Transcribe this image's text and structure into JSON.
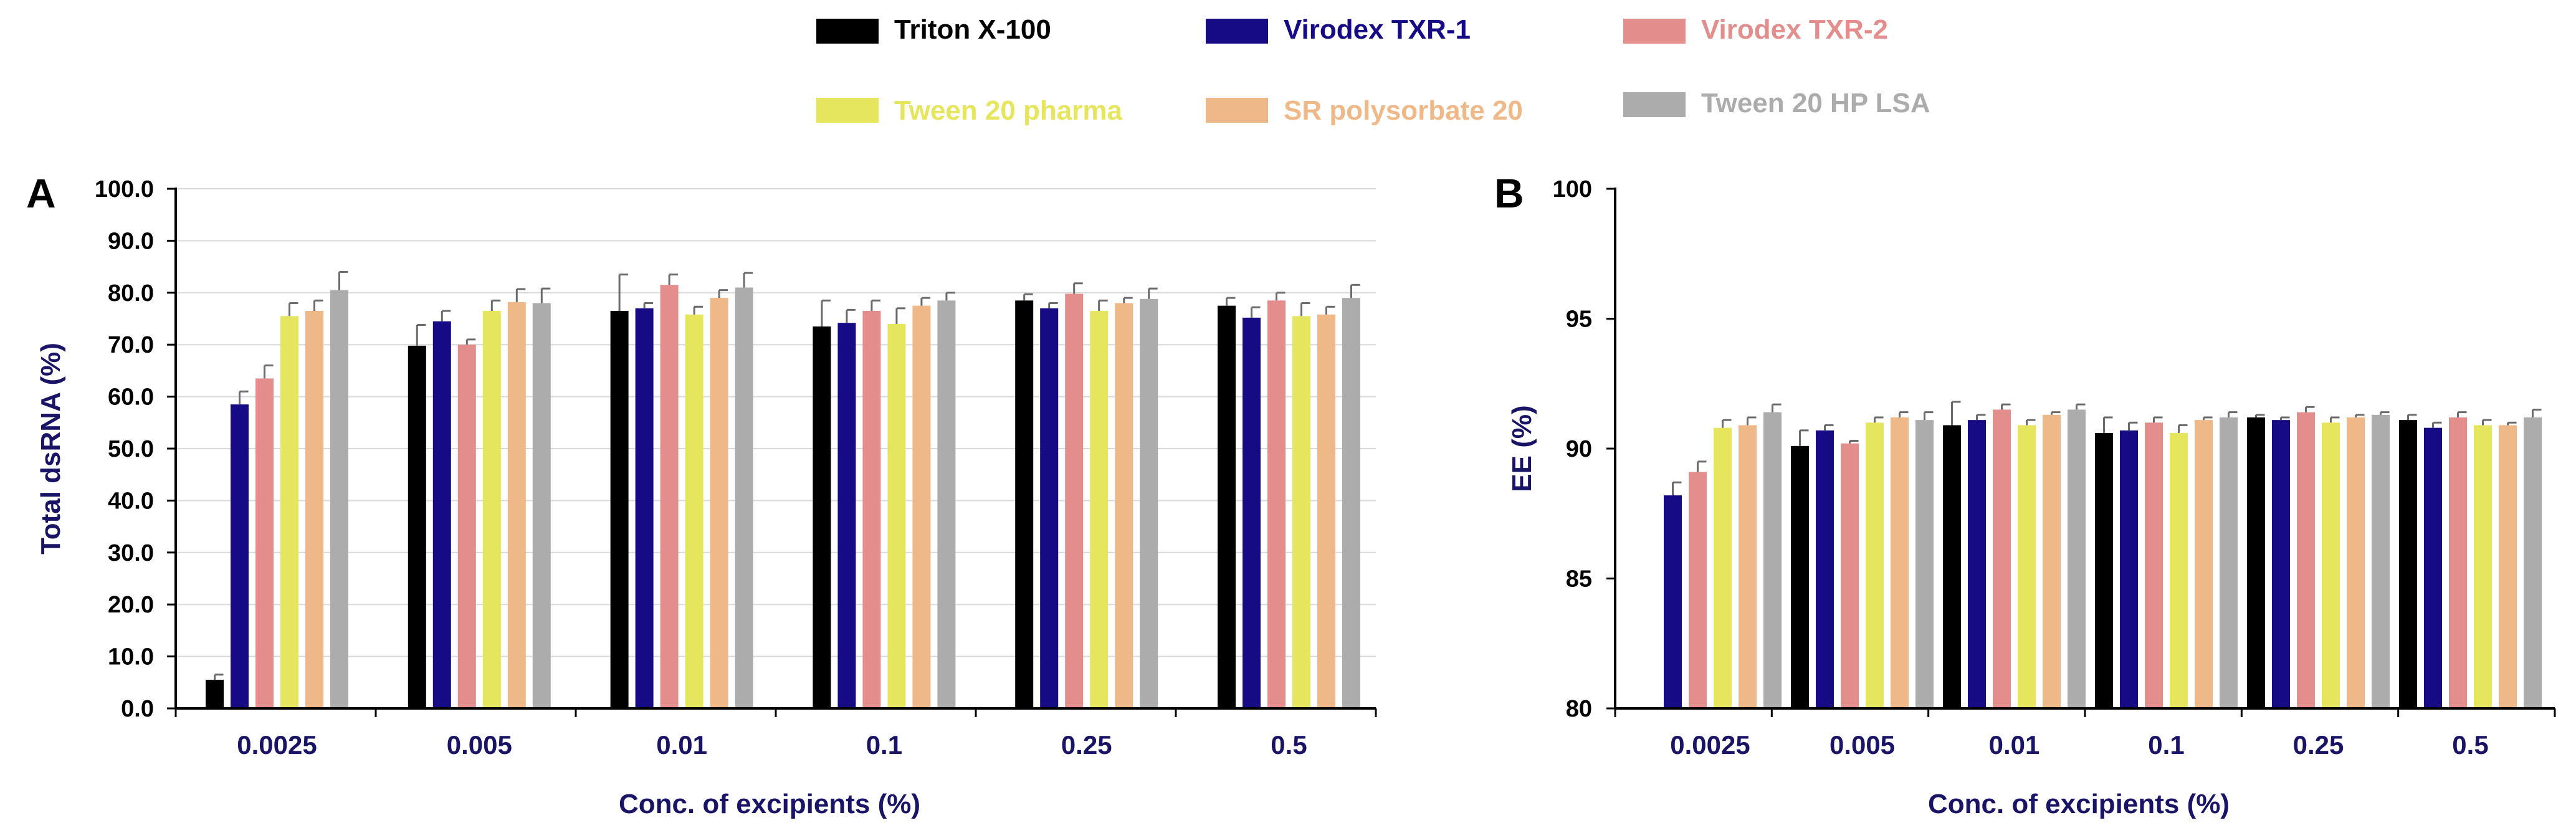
{
  "legend": [
    {
      "name": "Triton X-100",
      "color": "#000000",
      "text_color": "#000000"
    },
    {
      "name": "Virodex TXR-1",
      "color": "#160a85",
      "text_color": "#160a85"
    },
    {
      "name": "Virodex TXR-2",
      "color": "#e38d8d",
      "text_color": "#e38d8d"
    },
    {
      "name": "Tween 20 pharma",
      "color": "#e6e65e",
      "text_color": "#e6e65e"
    },
    {
      "name": "SR polysorbate 20",
      "color": "#efb888",
      "text_color": "#efb888"
    },
    {
      "name": "Tween 20 HP LSA",
      "color": "#acacac",
      "text_color": "#acacac"
    }
  ],
  "chart_data": [
    {
      "type": "bar",
      "panel": "A",
      "ylabel": "Total dsRNA (%)",
      "xlabel": "Conc. of excipients (%)",
      "ylim": [
        0,
        100
      ],
      "yticks": [
        "0.0",
        "10.0",
        "20.0",
        "30.0",
        "40.0",
        "50.0",
        "60.0",
        "70.0",
        "80.0",
        "90.0",
        "100.0"
      ],
      "grid": true,
      "categories": [
        "0.0025",
        "0.005",
        "0.01",
        "0.1",
        "0.25",
        "0.5"
      ],
      "series": [
        {
          "name": "Triton X-100",
          "values": [
            5.5,
            69.8,
            76.5,
            73.5,
            78.5,
            77.5
          ],
          "errors": [
            1.0,
            4.0,
            7.0,
            5.0,
            1.2,
            1.5
          ]
        },
        {
          "name": "Virodex TXR-1",
          "values": [
            58.5,
            74.5,
            77.0,
            74.2,
            77.0,
            75.2
          ],
          "errors": [
            2.5,
            2.0,
            1.0,
            2.5,
            1.0,
            2.0
          ]
        },
        {
          "name": "Virodex TXR-2",
          "values": [
            63.5,
            70.0,
            81.5,
            76.5,
            79.8,
            78.5
          ],
          "errors": [
            2.5,
            1.0,
            2.0,
            2.0,
            2.0,
            1.5
          ]
        },
        {
          "name": "Tween 20 pharma",
          "values": [
            75.5,
            76.5,
            75.8,
            74.0,
            76.5,
            75.5
          ],
          "errors": [
            2.5,
            2.0,
            1.5,
            3.0,
            2.0,
            2.5
          ]
        },
        {
          "name": "SR polysorbate 20",
          "values": [
            76.5,
            78.2,
            79.0,
            77.5,
            78.0,
            75.8
          ],
          "errors": [
            2.0,
            2.5,
            1.5,
            1.5,
            1.0,
            1.5
          ]
        },
        {
          "name": "Tween 20 HP LSA",
          "values": [
            80.5,
            78.0,
            81.0,
            78.5,
            78.8,
            79.0
          ],
          "errors": [
            3.5,
            2.8,
            2.8,
            1.5,
            2.0,
            2.5
          ]
        }
      ]
    },
    {
      "type": "bar",
      "panel": "B",
      "ylabel": "EE (%)",
      "xlabel": "Conc. of excipients (%)",
      "ylim": [
        80,
        100
      ],
      "yticks": [
        "80",
        "85",
        "90",
        "95",
        "100"
      ],
      "grid": false,
      "categories": [
        "0.0025",
        "0.005",
        "0.01",
        "0.1",
        "0.25",
        "0.5"
      ],
      "series": [
        {
          "name": "Triton X-100",
          "values": [
            null,
            90.1,
            90.9,
            90.6,
            91.2,
            91.1
          ],
          "errors": [
            0,
            0.6,
            0.9,
            0.6,
            0.1,
            0.2
          ]
        },
        {
          "name": "Virodex TXR-1",
          "values": [
            88.2,
            90.7,
            91.1,
            90.7,
            91.1,
            90.8
          ],
          "errors": [
            0.5,
            0.2,
            0.2,
            0.3,
            0.1,
            0.2
          ]
        },
        {
          "name": "Virodex TXR-2",
          "values": [
            89.1,
            90.2,
            91.5,
            91.0,
            91.4,
            91.2
          ],
          "errors": [
            0.4,
            0.1,
            0.2,
            0.2,
            0.2,
            0.2
          ]
        },
        {
          "name": "Tween 20 pharma",
          "values": [
            90.8,
            91.0,
            90.9,
            90.6,
            91.0,
            90.9
          ],
          "errors": [
            0.3,
            0.2,
            0.2,
            0.3,
            0.2,
            0.2
          ]
        },
        {
          "name": "SR polysorbate 20",
          "values": [
            90.9,
            91.2,
            91.3,
            91.1,
            91.2,
            90.9
          ],
          "errors": [
            0.3,
            0.2,
            0.1,
            0.1,
            0.1,
            0.1
          ]
        },
        {
          "name": "Tween 20 HP LSA",
          "values": [
            91.4,
            91.1,
            91.5,
            91.2,
            91.3,
            91.2
          ],
          "errors": [
            0.3,
            0.3,
            0.2,
            0.2,
            0.1,
            0.3
          ]
        }
      ]
    }
  ]
}
